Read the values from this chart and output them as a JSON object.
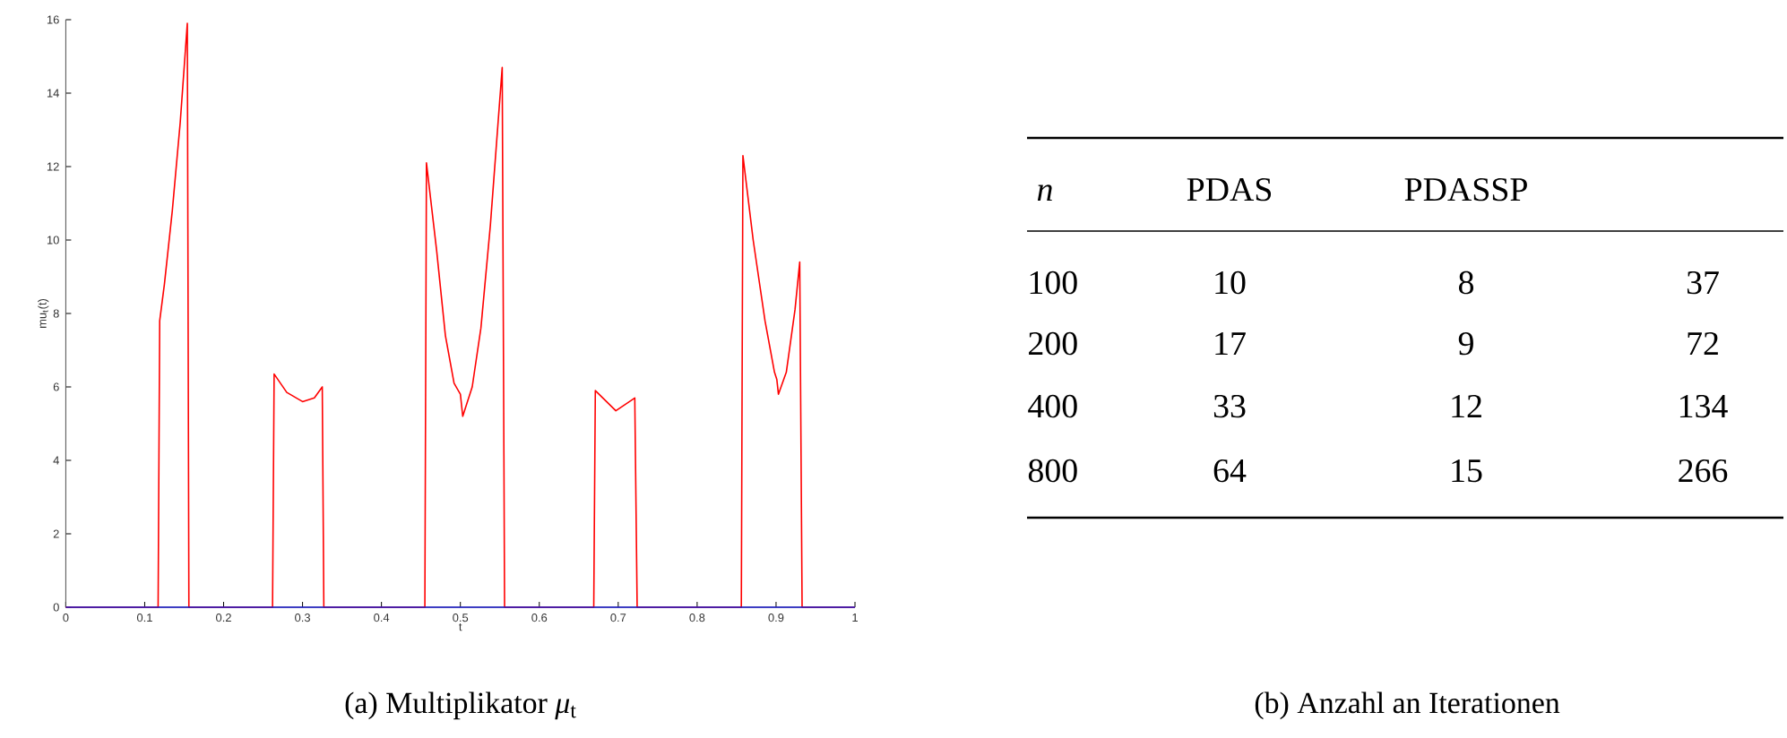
{
  "chart_data": [
    {
      "type": "line",
      "title": "(a) Multiplikator *μ*$_{t}$",
      "xlabel": "t",
      "ylabel": "mu$_{t}$(t)",
      "xlim": [
        0,
        1
      ],
      "ylim": [
        0,
        16
      ],
      "xticks": [
        0,
        0.1,
        0.2,
        0.3,
        0.4,
        0.5,
        0.6,
        0.7,
        0.8,
        0.9,
        1
      ],
      "yticks": [
        0,
        2,
        4,
        6,
        8,
        10,
        12,
        14,
        16
      ],
      "series": [
        {
          "color": "#ff0000",
          "x": [
            0,
            0.117,
            0.119,
            0.125,
            0.135,
            0.145,
            0.154,
            0.156,
            0.262,
            0.264,
            0.28,
            0.3,
            0.315,
            0.325,
            0.327,
            0.455,
            0.457,
            0.47,
            0.481,
            0.492,
            0.5,
            0.503,
            0.515,
            0.526,
            0.538,
            0.553,
            0.556,
            0.669,
            0.671,
            0.697,
            0.721,
            0.724,
            0.856,
            0.858,
            0.871,
            0.886,
            0.898,
            0.901,
            0.903,
            0.913,
            0.924,
            0.93,
            0.933,
            1
          ],
          "values": [
            0,
            0,
            7.8,
            8.8,
            10.8,
            13.2,
            15.9,
            0,
            0,
            6.35,
            5.85,
            5.6,
            5.7,
            6.0,
            0,
            0,
            12.1,
            9.7,
            7.4,
            6.1,
            5.8,
            5.2,
            6.0,
            7.6,
            10.4,
            14.7,
            0,
            0,
            5.9,
            5.35,
            5.7,
            0,
            0,
            12.3,
            10.0,
            7.8,
            6.4,
            6.2,
            5.8,
            6.4,
            8.1,
            9.4,
            0,
            0
          ]
        },
        {
          "color": "#1a1acc",
          "x": [
            0,
            1
          ],
          "values": [
            0,
            0
          ]
        }
      ]
    },
    {
      "type": "other",
      "title": "(b) Anzahl an Iterationen",
      "ylabel": "*n*",
      "categories": [
        "PDAS",
        "PDASSP",
        null
      ],
      "y_categories": [
        "100",
        "200",
        "400",
        "800"
      ],
      "cell_labels": [
        [
          "10",
          "8",
          "37"
        ],
        [
          "17",
          "9",
          "72"
        ],
        [
          "33",
          "12",
          "134"
        ],
        [
          "64",
          "15",
          "266"
        ]
      ]
    }
  ]
}
